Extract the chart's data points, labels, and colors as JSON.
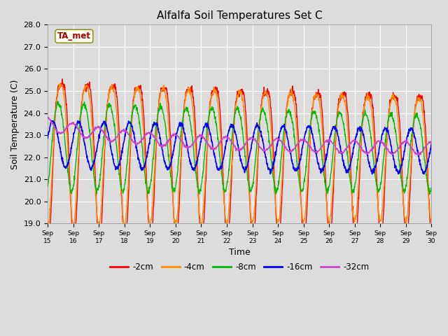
{
  "title": "Alfalfa Soil Temperatures Set C",
  "xlabel": "Time",
  "ylabel": "Soil Temperature (C)",
  "ylim": [
    19.0,
    28.0
  ],
  "yticks": [
    19.0,
    20.0,
    21.0,
    22.0,
    23.0,
    24.0,
    25.0,
    26.0,
    27.0,
    28.0
  ],
  "xtick_labels": [
    "Sep 15",
    "Sep 16",
    "Sep 17",
    "Sep 18",
    "Sep 19",
    "Sep 20",
    "Sep 21",
    "Sep 22",
    "Sep 23",
    "Sep 24",
    "Sep 25",
    "Sep 26",
    "Sep 27",
    "Sep 28",
    "Sep 29",
    "Sep 30"
  ],
  "colors": {
    "-2cm": "#FF0000",
    "-4cm": "#FF8C00",
    "-8cm": "#00BB00",
    "-16cm": "#0000FF",
    "-32cm": "#CC44CC"
  },
  "ta_met_fill": "#FFFFF0",
  "ta_met_text": "#AA0000",
  "ta_met_border": "#888800",
  "fig_bg": "#DCDCDC",
  "plot_bg": "#DCDCDC",
  "grid_color": "#FFFFFF"
}
